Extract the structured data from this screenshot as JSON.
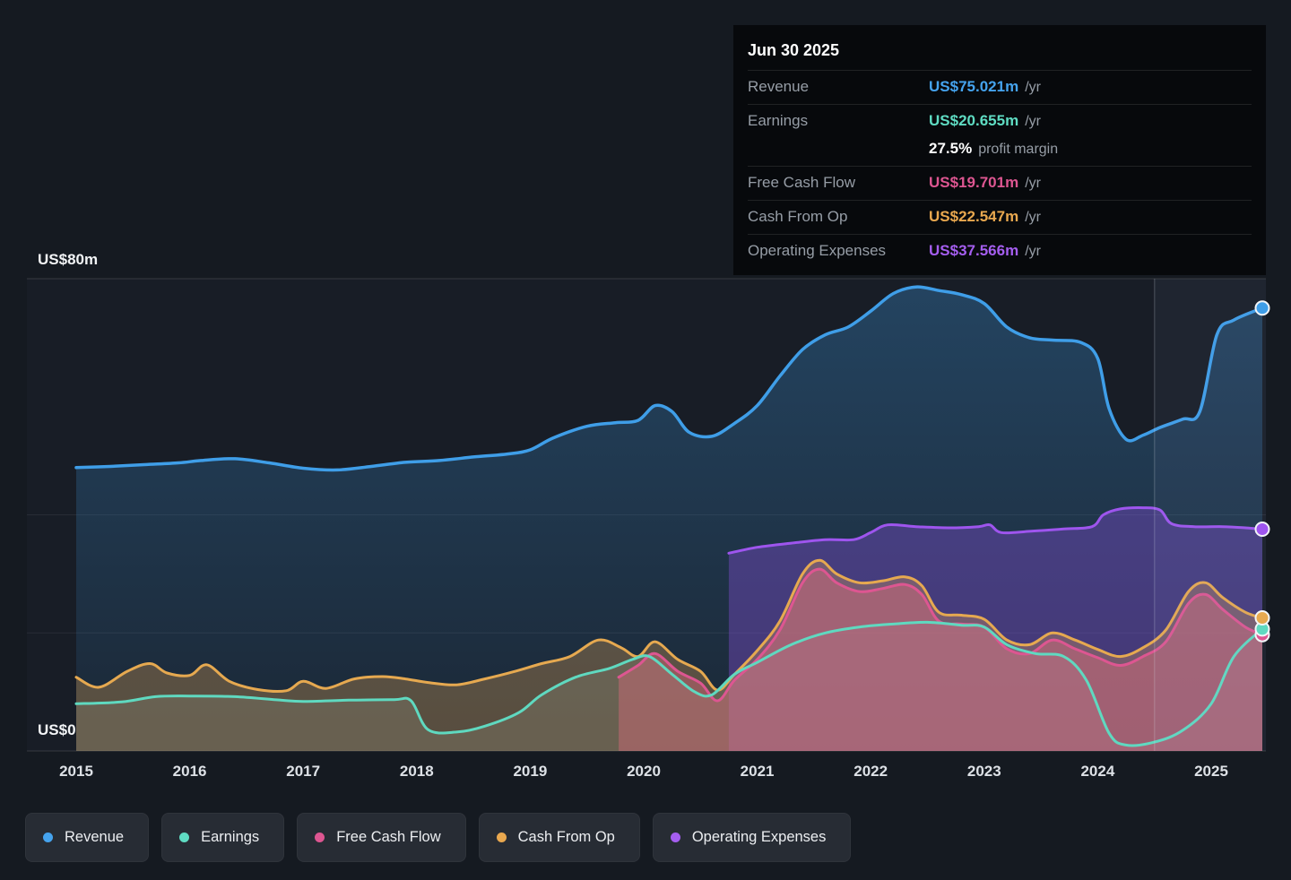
{
  "tooltip": {
    "date": "Jun 30 2025",
    "rows": [
      {
        "label": "Revenue",
        "value": "US$75.021m",
        "suffix": "/yr",
        "color": "#45a3ee"
      },
      {
        "label": "Earnings",
        "value": "US$20.655m",
        "suffix": "/yr",
        "color": "#5fdcc3"
      },
      {
        "label": "",
        "value": "27.5%",
        "suffix": "profit margin",
        "color": "#ffffff"
      },
      {
        "label": "Free Cash Flow",
        "value": "US$19.701m",
        "suffix": "/yr",
        "color": "#dd5691"
      },
      {
        "label": "Cash From Op",
        "value": "US$22.547m",
        "suffix": "/yr",
        "color": "#e9a84f"
      },
      {
        "label": "Operating Expenses",
        "value": "US$37.566m",
        "suffix": "/yr",
        "color": "#a55ef0"
      }
    ]
  },
  "legend": [
    {
      "id": "revenue",
      "label": "Revenue",
      "color": "#45a3ee"
    },
    {
      "id": "earnings",
      "label": "Earnings",
      "color": "#5fdcc3"
    },
    {
      "id": "fcf",
      "label": "Free Cash Flow",
      "color": "#dd5691"
    },
    {
      "id": "cashop",
      "label": "Cash From Op",
      "color": "#e9a84f"
    },
    {
      "id": "opex",
      "label": "Operating Expenses",
      "color": "#a55ef0"
    }
  ],
  "chart_data": {
    "type": "area",
    "title": "Earnings and revenue history (US$ millions per year)",
    "ylim": [
      0,
      80
    ],
    "y_gridlines": [
      0,
      20,
      40,
      80
    ],
    "y_axis_labels": {
      "top": "US$80m",
      "bottom": "US$0"
    },
    "x_ticks": [
      "2015",
      "2016",
      "2017",
      "2018",
      "2019",
      "2020",
      "2021",
      "2022",
      "2023",
      "2024",
      "2025"
    ],
    "x_range": [
      2015,
      2025.5
    ],
    "highlight_band": {
      "from": 2024.5,
      "to": 2025.5
    },
    "series": [
      {
        "id": "revenue",
        "name": "Revenue",
        "color": "#3f9ee8",
        "fill": "gradient",
        "points": [
          [
            2015,
            48
          ],
          [
            2015.3,
            48.2
          ],
          [
            2015.6,
            48.5
          ],
          [
            2015.9,
            48.8
          ],
          [
            2016.1,
            49.2
          ],
          [
            2016.4,
            49.5
          ],
          [
            2016.7,
            48.8
          ],
          [
            2017,
            47.9
          ],
          [
            2017.3,
            47.6
          ],
          [
            2017.6,
            48.2
          ],
          [
            2017.9,
            48.9
          ],
          [
            2018.2,
            49.2
          ],
          [
            2018.5,
            49.8
          ],
          [
            2018.8,
            50.3
          ],
          [
            2019,
            51
          ],
          [
            2019.2,
            53
          ],
          [
            2019.5,
            55
          ],
          [
            2019.75,
            55.6
          ],
          [
            2019.95,
            56
          ],
          [
            2020.1,
            58.5
          ],
          [
            2020.25,
            57.5
          ],
          [
            2020.4,
            54
          ],
          [
            2020.6,
            53.3
          ],
          [
            2020.8,
            55.5
          ],
          [
            2021,
            58.5
          ],
          [
            2021.2,
            63.5
          ],
          [
            2021.4,
            68
          ],
          [
            2021.6,
            70.5
          ],
          [
            2021.8,
            71.8
          ],
          [
            2022,
            74.5
          ],
          [
            2022.2,
            77.5
          ],
          [
            2022.4,
            78.6
          ],
          [
            2022.6,
            78
          ],
          [
            2022.8,
            77.3
          ],
          [
            2023,
            75.8
          ],
          [
            2023.2,
            71.8
          ],
          [
            2023.4,
            70
          ],
          [
            2023.6,
            69.6
          ],
          [
            2023.85,
            69.2
          ],
          [
            2024,
            66.5
          ],
          [
            2024.1,
            58
          ],
          [
            2024.25,
            52.8
          ],
          [
            2024.4,
            53.5
          ],
          [
            2024.55,
            54.8
          ],
          [
            2024.75,
            56.2
          ],
          [
            2024.9,
            57.5
          ],
          [
            2025.05,
            70.5
          ],
          [
            2025.2,
            73
          ],
          [
            2025.45,
            75.021
          ]
        ]
      },
      {
        "id": "earnings",
        "name": "Earnings",
        "color": "#5fd9c0",
        "fill": "rgba(155,190,195,0.18)",
        "points": [
          [
            2015,
            8
          ],
          [
            2015.4,
            8.3
          ],
          [
            2015.7,
            9.2
          ],
          [
            2016,
            9.3
          ],
          [
            2016.4,
            9.2
          ],
          [
            2016.8,
            8.6
          ],
          [
            2017,
            8.4
          ],
          [
            2017.4,
            8.6
          ],
          [
            2017.8,
            8.7
          ],
          [
            2017.95,
            8.5
          ],
          [
            2018.1,
            3.6
          ],
          [
            2018.35,
            3.2
          ],
          [
            2018.6,
            4.2
          ],
          [
            2018.9,
            6.5
          ],
          [
            2019.1,
            9.5
          ],
          [
            2019.4,
            12.5
          ],
          [
            2019.7,
            14
          ],
          [
            2019.9,
            15.5
          ],
          [
            2020.05,
            16
          ],
          [
            2020.25,
            13
          ],
          [
            2020.45,
            10
          ],
          [
            2020.6,
            9.5
          ],
          [
            2020.8,
            13
          ],
          [
            2021,
            15
          ],
          [
            2021.3,
            18
          ],
          [
            2021.6,
            20
          ],
          [
            2021.9,
            21
          ],
          [
            2022.2,
            21.5
          ],
          [
            2022.5,
            21.8
          ],
          [
            2022.8,
            21.3
          ],
          [
            2023,
            21
          ],
          [
            2023.2,
            18
          ],
          [
            2023.45,
            16.5
          ],
          [
            2023.7,
            16
          ],
          [
            2023.9,
            12
          ],
          [
            2024.1,
            3
          ],
          [
            2024.25,
            1
          ],
          [
            2024.5,
            1.5
          ],
          [
            2024.75,
            3.5
          ],
          [
            2025,
            8
          ],
          [
            2025.2,
            16
          ],
          [
            2025.45,
            20.655
          ]
        ]
      },
      {
        "id": "fcf",
        "name": "Free Cash Flow",
        "color": "#dd5691",
        "fill": "rgba(219,84,146,0.42)",
        "points": [
          [
            2019.78,
            12.5
          ],
          [
            2019.95,
            14.5
          ],
          [
            2020.1,
            16.5
          ],
          [
            2020.3,
            13.5
          ],
          [
            2020.5,
            11.5
          ],
          [
            2020.65,
            8.5
          ],
          [
            2020.8,
            12
          ],
          [
            2021,
            15.5
          ],
          [
            2021.2,
            20.5
          ],
          [
            2021.4,
            28.5
          ],
          [
            2021.55,
            30.8
          ],
          [
            2021.7,
            28.5
          ],
          [
            2021.9,
            27
          ],
          [
            2022.1,
            27.5
          ],
          [
            2022.3,
            28.2
          ],
          [
            2022.45,
            26.5
          ],
          [
            2022.6,
            22
          ],
          [
            2022.8,
            21.5
          ],
          [
            2023,
            21
          ],
          [
            2023.2,
            17.3
          ],
          [
            2023.4,
            16.5
          ],
          [
            2023.6,
            18.8
          ],
          [
            2023.8,
            17.3
          ],
          [
            2024,
            15.8
          ],
          [
            2024.2,
            14.5
          ],
          [
            2024.4,
            16
          ],
          [
            2024.6,
            18.5
          ],
          [
            2024.8,
            25
          ],
          [
            2024.95,
            26.5
          ],
          [
            2025.1,
            24
          ],
          [
            2025.3,
            21
          ],
          [
            2025.45,
            19.701
          ]
        ]
      },
      {
        "id": "cashop",
        "name": "Cash From Op",
        "color": "#e6a950",
        "fill": "rgba(232,167,83,0.30)",
        "points": [
          [
            2015,
            12.5
          ],
          [
            2015.2,
            10.8
          ],
          [
            2015.45,
            13.5
          ],
          [
            2015.65,
            14.8
          ],
          [
            2015.8,
            13.2
          ],
          [
            2016,
            12.8
          ],
          [
            2016.15,
            14.6
          ],
          [
            2016.35,
            11.8
          ],
          [
            2016.6,
            10.4
          ],
          [
            2016.85,
            10.2
          ],
          [
            2017,
            11.8
          ],
          [
            2017.2,
            10.6
          ],
          [
            2017.45,
            12.2
          ],
          [
            2017.7,
            12.6
          ],
          [
            2017.9,
            12.2
          ],
          [
            2018.1,
            11.6
          ],
          [
            2018.35,
            11.2
          ],
          [
            2018.6,
            12.2
          ],
          [
            2018.85,
            13.4
          ],
          [
            2019.1,
            14.8
          ],
          [
            2019.35,
            16
          ],
          [
            2019.6,
            18.8
          ],
          [
            2019.8,
            17.5
          ],
          [
            2019.95,
            16
          ],
          [
            2020.1,
            18.5
          ],
          [
            2020.3,
            15.5
          ],
          [
            2020.5,
            13.5
          ],
          [
            2020.65,
            10.3
          ],
          [
            2020.8,
            13
          ],
          [
            2021,
            17
          ],
          [
            2021.2,
            22
          ],
          [
            2021.4,
            30
          ],
          [
            2021.55,
            32.3
          ],
          [
            2021.7,
            30
          ],
          [
            2021.9,
            28.5
          ],
          [
            2022.1,
            28.8
          ],
          [
            2022.3,
            29.5
          ],
          [
            2022.45,
            28
          ],
          [
            2022.6,
            23.5
          ],
          [
            2022.8,
            23
          ],
          [
            2023,
            22.3
          ],
          [
            2023.2,
            18.8
          ],
          [
            2023.4,
            18
          ],
          [
            2023.6,
            20
          ],
          [
            2023.8,
            18.8
          ],
          [
            2024,
            17.2
          ],
          [
            2024.2,
            16
          ],
          [
            2024.4,
            17.5
          ],
          [
            2024.6,
            20.5
          ],
          [
            2024.8,
            27
          ],
          [
            2024.95,
            28.5
          ],
          [
            2025.1,
            26
          ],
          [
            2025.3,
            23.5
          ],
          [
            2025.45,
            22.547
          ]
        ]
      },
      {
        "id": "opex",
        "name": "Operating Expenses",
        "color": "#9e55ee",
        "fill": "rgba(146,82,235,0.34)",
        "points": [
          [
            2020.75,
            33.5
          ],
          [
            2021,
            34.5
          ],
          [
            2021.3,
            35.2
          ],
          [
            2021.6,
            35.8
          ],
          [
            2021.85,
            35.8
          ],
          [
            2022,
            37
          ],
          [
            2022.15,
            38.3
          ],
          [
            2022.4,
            38
          ],
          [
            2022.7,
            37.8
          ],
          [
            2022.95,
            38
          ],
          [
            2023.05,
            38.3
          ],
          [
            2023.15,
            37
          ],
          [
            2023.4,
            37.2
          ],
          [
            2023.7,
            37.6
          ],
          [
            2023.95,
            38
          ],
          [
            2024.05,
            40
          ],
          [
            2024.2,
            41
          ],
          [
            2024.4,
            41.2
          ],
          [
            2024.55,
            40.8
          ],
          [
            2024.65,
            38.5
          ],
          [
            2024.85,
            38
          ],
          [
            2025.1,
            38
          ],
          [
            2025.3,
            37.8
          ],
          [
            2025.45,
            37.566
          ]
        ]
      }
    ]
  }
}
